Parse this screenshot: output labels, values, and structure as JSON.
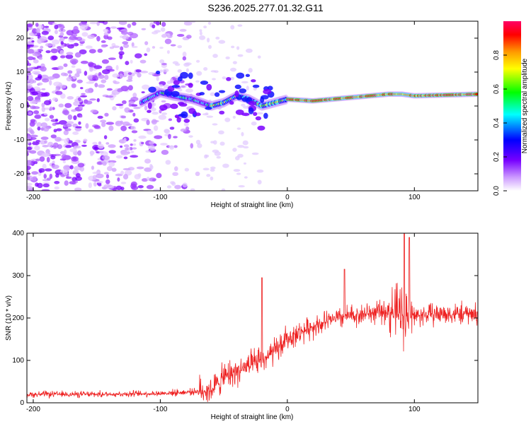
{
  "title": "S236.2025.277.01.32.G11",
  "colors": {
    "snr_line": "#ee2222",
    "axis": "#000000",
    "background": "#ffffff"
  },
  "chart_data": [
    {
      "type": "heatmap",
      "xlabel": "Height of straight line (km)",
      "ylabel": "Frequency (Hz)",
      "xlim": [
        -205,
        150
      ],
      "ylim": [
        -25,
        25
      ],
      "x_ticks": [
        -200,
        -100,
        0,
        100
      ],
      "y_ticks": [
        -20,
        -10,
        0,
        10,
        20
      ],
      "colorbar": {
        "label": "Normalized spectral amplitude",
        "range": [
          0,
          1
        ],
        "ticks": [
          "0.0",
          "0.2",
          "0.4",
          "0.6",
          "0.8"
        ],
        "colors": [
          "#ffffff",
          "#cc99ff",
          "#7700ff",
          "#0000ff",
          "#00ffff",
          "#00ff00",
          "#ffff00",
          "#ff9900",
          "#ff0000",
          "#ff0066"
        ]
      },
      "ridge": {
        "description_points_x_km": [
          -115,
          -100,
          -90,
          -75,
          -60,
          -50,
          -40,
          -30,
          -20,
          -10,
          0,
          20,
          50,
          80,
          90,
          100,
          150
        ],
        "frequency_hz": [
          1,
          4,
          3,
          2,
          0,
          1,
          3,
          2,
          0,
          1,
          2,
          1.5,
          2.5,
          3.5,
          3.5,
          3,
          3.5
        ]
      }
    },
    {
      "type": "line",
      "xlabel": "Height of straight line (km)",
      "ylabel": "SNR (10 * v/v)",
      "xlim": [
        -205,
        150
      ],
      "ylim": [
        0,
        400
      ],
      "x_ticks": [
        -200,
        -100,
        0,
        100
      ],
      "y_ticks": [
        0,
        100,
        200,
        300,
        400
      ],
      "series": [
        {
          "name": "SNR",
          "envelope_x": [
            -205,
            -150,
            -100,
            -80,
            -60,
            -50,
            -40,
            -30,
            -20,
            -10,
            0,
            10,
            20,
            40,
            60,
            80,
            90,
            95,
            100,
            120,
            150
          ],
          "envelope_mean": [
            20,
            20,
            22,
            25,
            30,
            60,
            75,
            85,
            100,
            120,
            150,
            165,
            180,
            200,
            210,
            215,
            210,
            200,
            205,
            210,
            210
          ],
          "spike_peaks": [
            {
              "x": -20,
              "y": 295
            },
            {
              "x": 45,
              "y": 315
            },
            {
              "x": 92,
              "y": 400
            },
            {
              "x": 96,
              "y": 390
            }
          ]
        }
      ]
    }
  ]
}
